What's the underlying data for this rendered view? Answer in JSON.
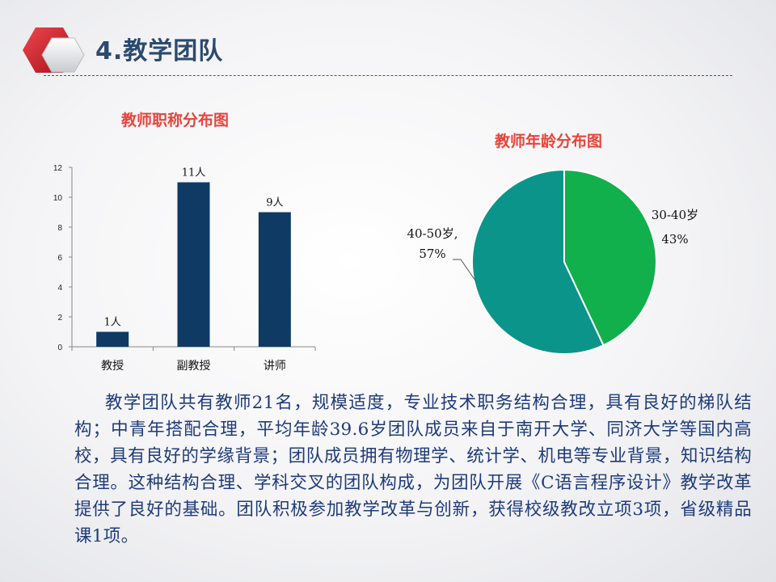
{
  "slide": {
    "title": "4.教学团队",
    "paragraph": "教学团队共有教师21名，规模适度，专业技术职务结构合理，具有良好的梯队结构；中青年搭配合理，平均年龄39.6岁团队成员来自于南开大学、同济大学等国内高校，具有良好的学缘背景；团队成员拥有物理学、统计学、机电等专业背景，知识结构合理。这种结构合理、学科交叉的团队构成，为团队开展《C语言程序设计》教学改革提供了良好的基础。团队积极参加教学改革与创新，获得校级教改立项3项，省级精品课1项。"
  },
  "colors": {
    "title": "#2b4a6e",
    "chart_title": "#e8443a",
    "bar": "#0f3a63",
    "pie_green": "#12b04c",
    "pie_teal": "#0b958a",
    "body_text": "#1f3b7a",
    "logo_red": "#d01f2a"
  },
  "chart_data": [
    {
      "type": "bar",
      "title": "教师职称分布图",
      "categories": [
        "教授",
        "副教授",
        "讲师"
      ],
      "values": [
        1,
        11,
        9
      ],
      "data_labels": [
        "1人",
        "11人",
        "9人"
      ],
      "ylim": [
        0,
        12
      ],
      "yticks": [
        0,
        2,
        4,
        6,
        8,
        10,
        12
      ],
      "xlabel": "",
      "ylabel": "",
      "grid": false
    },
    {
      "type": "pie",
      "title": "教师年龄分布图",
      "slices": [
        {
          "label": "30-40岁",
          "value": 43,
          "pct_label": "43%"
        },
        {
          "label": "40-50岁,",
          "value": 57,
          "pct_label": "57%"
        }
      ]
    }
  ]
}
